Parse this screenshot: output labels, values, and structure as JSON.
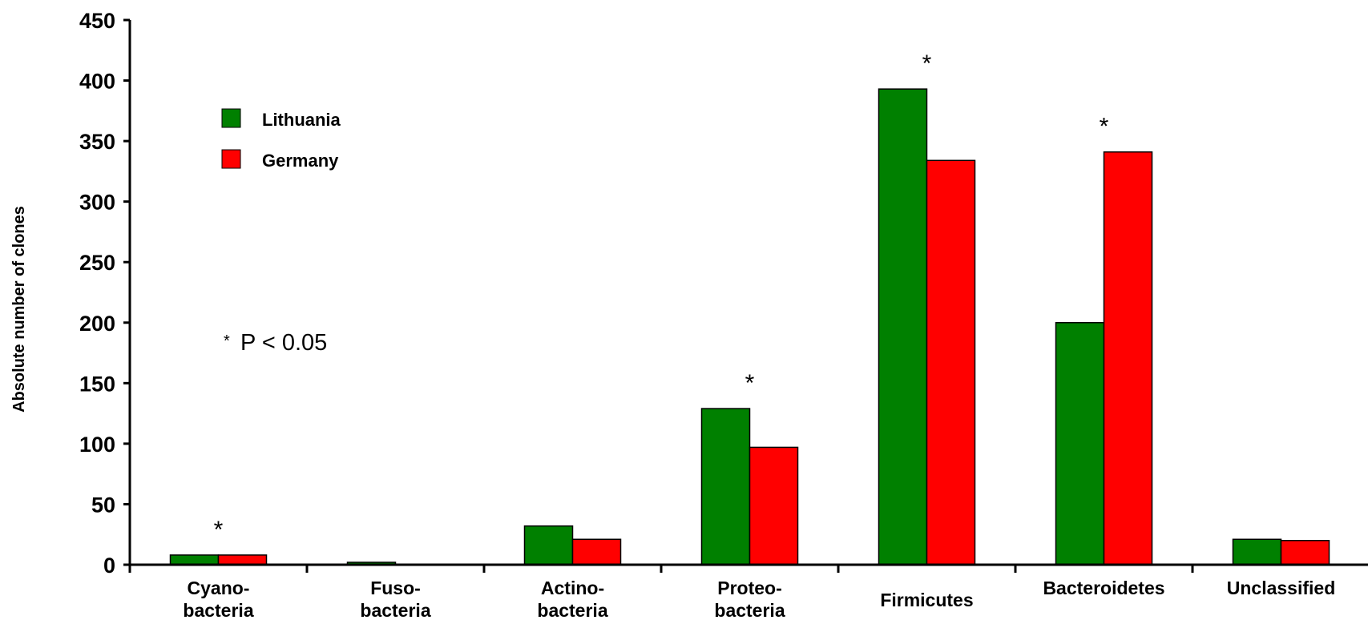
{
  "chart_data": {
    "type": "bar",
    "title": "",
    "xlabel": "",
    "ylabel": "Absolute number of clones",
    "ylim": [
      0,
      450
    ],
    "yticks": [
      0,
      50,
      100,
      150,
      200,
      250,
      300,
      350,
      400,
      450
    ],
    "grid": false,
    "legend_position": "top-left",
    "categories": [
      [
        "Cyano-",
        "bacteria"
      ],
      [
        "Fuso-",
        "bacteria"
      ],
      [
        "Actino-",
        "bacteria"
      ],
      [
        "Proteo-",
        "bacteria"
      ],
      [
        "Firmicutes"
      ],
      [
        "Bacteroidetes"
      ],
      [
        "Unclassified"
      ]
    ],
    "series": [
      {
        "name": "Lithuania",
        "color": "#008000",
        "values": [
          8,
          2,
          32,
          129,
          393,
          200,
          21
        ]
      },
      {
        "name": "Germany",
        "color": "#ff0000",
        "values": [
          8,
          0,
          21,
          97,
          334,
          341,
          20
        ]
      }
    ],
    "significance": {
      "marker": "*",
      "categories": [
        0,
        3,
        4,
        5
      ]
    },
    "annotation": {
      "star": "*",
      "text": "P < 0.05"
    }
  }
}
